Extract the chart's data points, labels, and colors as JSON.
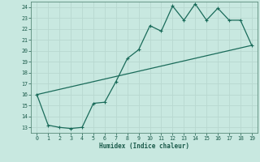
{
  "title": "",
  "xlabel": "Humidex (Indice chaleur)",
  "xlim": [
    -0.5,
    19.5
  ],
  "ylim": [
    12.5,
    24.5
  ],
  "yticks": [
    13,
    14,
    15,
    16,
    17,
    18,
    19,
    20,
    21,
    22,
    23,
    24
  ],
  "xticks": [
    0,
    1,
    2,
    3,
    4,
    5,
    6,
    7,
    8,
    9,
    10,
    11,
    12,
    13,
    14,
    15,
    16,
    17,
    18,
    19
  ],
  "line_color": "#1a6b5a",
  "bg_color": "#c8e8e0",
  "grid_color": "#b8d8d0",
  "line1_x": [
    0,
    1,
    2,
    3,
    4,
    5,
    6,
    7,
    8,
    9,
    10,
    11,
    12,
    13,
    14,
    15,
    16,
    17,
    18,
    19
  ],
  "line1_y": [
    16.0,
    13.2,
    13.0,
    12.9,
    13.0,
    15.2,
    15.3,
    17.2,
    19.3,
    20.1,
    22.3,
    21.8,
    24.1,
    22.8,
    24.3,
    22.8,
    23.9,
    22.8,
    22.8,
    20.5
  ],
  "line2_x": [
    0,
    19
  ],
  "line2_y": [
    16.0,
    20.5
  ]
}
